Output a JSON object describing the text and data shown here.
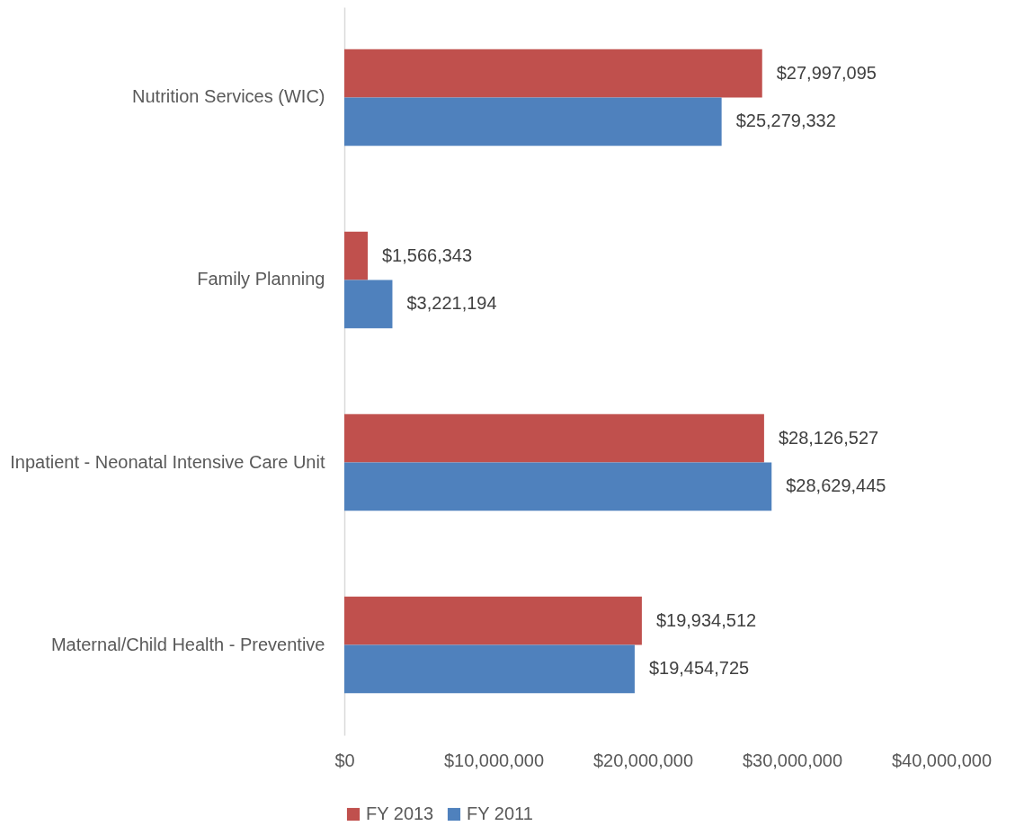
{
  "chart_data": {
    "type": "bar",
    "orientation": "horizontal",
    "categories": [
      "Nutrition Services (WIC)",
      "Family Planning",
      "Inpatient - Neonatal Intensive Care Unit",
      "Maternal/Child Health - Preventive"
    ],
    "series": [
      {
        "name": "FY 2013",
        "color": "#c0504d",
        "values": [
          27997095,
          1566343,
          28126527,
          19934512
        ],
        "value_labels": [
          "$27,997,095",
          "$1,566,343",
          "$28,126,527",
          "$19,934,512"
        ]
      },
      {
        "name": "FY 2011",
        "color": "#4f81bd",
        "values": [
          25279332,
          3221194,
          28629445,
          19454725
        ],
        "value_labels": [
          "$25,279,332",
          "$3,221,194",
          "$28,629,445",
          "$19,454,725"
        ]
      }
    ],
    "xlim": [
      0,
      40000000
    ],
    "xticks": [
      {
        "value": 0,
        "label": "$0"
      },
      {
        "value": 10000000,
        "label": "$10,000,000"
      },
      {
        "value": 20000000,
        "label": "$20,000,000"
      },
      {
        "value": 30000000,
        "label": "$30,000,000"
      },
      {
        "value": 40000000,
        "label": "$40,000,000"
      }
    ],
    "grid": false,
    "legend": "bottom"
  }
}
